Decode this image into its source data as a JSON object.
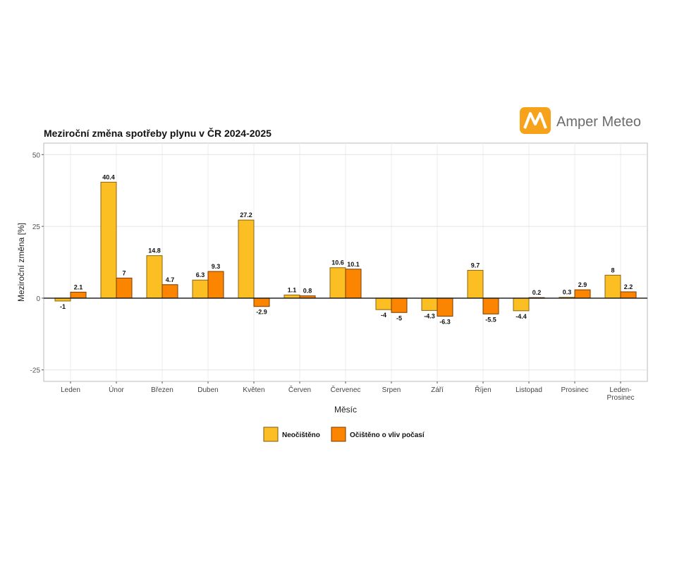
{
  "brand": {
    "name": "Amper Meteo",
    "color": "#f7a21b"
  },
  "chart_data": {
    "type": "bar",
    "title": "Meziroční změna spotřeby plynu v ČR 2024-2025",
    "xlabel": "Měsíc",
    "ylabel": "Meziroční změna [%]",
    "ylim": [
      -29,
      54
    ],
    "yticks": [
      -25,
      0,
      25,
      50
    ],
    "grid": true,
    "legend_position": "bottom",
    "categories": [
      "Leden",
      "Únor",
      "Březen",
      "Duben",
      "Květen",
      "Červen",
      "Červenec",
      "Srpen",
      "Září",
      "Říjen",
      "Listopad",
      "Prosinec",
      "Leden-Prosinec"
    ],
    "series": [
      {
        "name": "Neočištěno",
        "color": "#fbbf24",
        "values": [
          -1,
          40.4,
          14.8,
          6.3,
          27.2,
          1.1,
          10.6,
          -4,
          -4.3,
          9.7,
          -4.4,
          0.3,
          8
        ]
      },
      {
        "name": "Očištěno o vliv počasí",
        "color": "#fb8500",
        "values": [
          2.1,
          7,
          4.7,
          9.3,
          -2.9,
          0.8,
          10.1,
          -5,
          -6.3,
          -5.5,
          0.2,
          2.9,
          2.2
        ]
      }
    ]
  }
}
